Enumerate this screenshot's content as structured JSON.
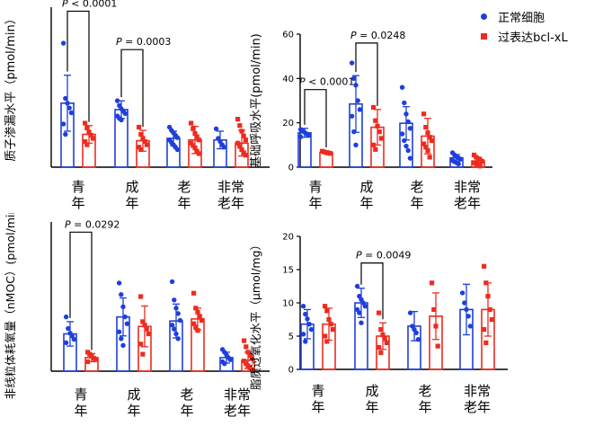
{
  "colors": {
    "blue": "#1f3fdc",
    "red": "#ee2b1f",
    "axis": "#000000"
  },
  "legend": [
    {
      "label": "正常细胞",
      "color": "#1f3fdc",
      "marker": "circle"
    },
    {
      "label": "过表达bcl-xL",
      "color": "#ee2b1f",
      "marker": "square"
    }
  ],
  "chart_data": [
    {
      "id": "proton-leak",
      "type": "bar",
      "ylabel": "质子渗漏水平（pmol/min）",
      "ylim": [
        0,
        20
      ],
      "yticks": [],
      "categories": [
        [
          "青",
          "年"
        ],
        [
          "成",
          "年"
        ],
        [
          "老",
          "年"
        ],
        [
          "非常",
          "老年"
        ]
      ],
      "series": [
        {
          "name": "正常细胞",
          "values": [
            8.0,
            7.2,
            3.6,
            3.4
          ],
          "err": [
            3.5,
            1.1,
            0.9,
            1.1
          ],
          "points": [
            [
              15.5,
              8.6,
              8.0,
              7.4,
              6.8,
              5.4,
              4.1
            ],
            [
              8.3,
              7.7,
              7.3,
              7.0,
              6.7,
              6.4,
              6.1,
              5.9
            ],
            [
              5.0,
              4.6,
              4.3,
              4.0,
              3.7,
              3.4,
              3.1,
              2.8,
              2.5,
              2.2
            ],
            [
              4.8,
              3.6,
              3.2,
              2.8,
              2.5
            ]
          ]
        },
        {
          "name": "过表达bcl-xL",
          "values": [
            4.1,
            3.3,
            3.4,
            3.0
          ],
          "err": [
            1.1,
            1.3,
            1.7,
            1.6
          ],
          "points": [
            [
              5.5,
              4.9,
              4.4,
              4.0,
              3.6,
              3.2,
              2.8
            ],
            [
              5.0,
              4.1,
              3.6,
              3.2,
              2.8,
              2.5,
              2.2
            ],
            [
              5.5,
              4.8,
              4.2,
              3.8,
              3.4,
              3.0,
              2.7,
              2.4,
              2.0,
              1.7
            ],
            [
              6.0,
              5.2,
              4.5,
              3.9,
              3.4,
              3.0,
              2.6,
              2.2,
              1.8,
              1.5
            ]
          ]
        }
      ],
      "annotations": [
        {
          "text": "P < 0.0001",
          "pair": [
            0,
            0
          ],
          "ybar": 19.5
        },
        {
          "text": "P = 0.0003",
          "pair": [
            1,
            1
          ],
          "ybar": 14.7
        }
      ]
    },
    {
      "id": "basal-respiration",
      "type": "bar",
      "ylabel": "基础呼吸水平(pmol/min)",
      "ylim": [
        0,
        60
      ],
      "yticks": [
        "0",
        "20",
        "40",
        "60"
      ],
      "categories": [
        [
          "青",
          "年"
        ],
        [
          "成",
          "年"
        ],
        [
          "老",
          "年"
        ],
        [
          "非常",
          "老年"
        ]
      ],
      "series": [
        {
          "name": "正常细胞",
          "values": [
            15.5,
            28.5,
            19.8,
            4.2
          ],
          "err": [
            2.0,
            12.8,
            7.5,
            1.5
          ],
          "points": [
            [
              17.0,
              16.3,
              15.7,
              15.0,
              14.3,
              13.7
            ],
            [
              47.0,
              40.0,
              37.0,
              30.0,
              26.0,
              23.0,
              16.0,
              10.0
            ],
            [
              36.0,
              29.0,
              24.0,
              20.5,
              17.5,
              15.0,
              12.0,
              9.5,
              7.5,
              4.0
            ],
            [
              6.5,
              5.5,
              4.8,
              4.2,
              3.6,
              3.0,
              2.5,
              2.0,
              1.5
            ]
          ]
        },
        {
          "name": "过表达bcl-xL",
          "values": [
            6.7,
            18.0,
            14.0,
            2.8
          ],
          "err": [
            0.6,
            8.0,
            8.0,
            1.6
          ],
          "points": [
            [
              7.2,
              6.9,
              6.6,
              6.4,
              6.2
            ],
            [
              27.0,
              21.0,
              18.5,
              16.0,
              13.0,
              10.0,
              8.0
            ],
            [
              24.0,
              18.0,
              15.5,
              13.5,
              12.0,
              10.5,
              9.0,
              7.5,
              4.5
            ],
            [
              5.5,
              4.5,
              3.8,
              3.2,
              2.6,
              2.0,
              1.5,
              1.0,
              0.5
            ]
          ]
        }
      ],
      "annotations": [
        {
          "text": "P < 0.0001",
          "pair": [
            0,
            0
          ],
          "ybar": 35.0
        },
        {
          "text": "P = 0.0248",
          "pair": [
            1,
            1
          ],
          "ybar": 56.0
        }
      ]
    },
    {
      "id": "non-mito-oxygen",
      "type": "bar",
      "ylabel": "非线粒体耗氧量（nMOC）(pmol/min)",
      "ylim": [
        0,
        22
      ],
      "yticks": [],
      "categories": [
        [
          "青",
          "年"
        ],
        [
          "成",
          "年"
        ],
        [
          "老",
          "年"
        ],
        [
          "非常",
          "老年"
        ]
      ],
      "series": [
        {
          "name": "正常细胞",
          "values": [
            5.5,
            8.0,
            7.4,
            2.0
          ],
          "err": [
            1.8,
            2.8,
            2.5,
            0.8
          ],
          "points": [
            [
              8.0,
              6.3,
              5.6,
              5.2,
              4.7,
              4.2
            ],
            [
              13.0,
              11.3,
              9.5,
              8.0,
              7.0,
              5.8,
              4.8,
              3.8
            ],
            [
              13.2,
              10.5,
              9.3,
              8.5,
              7.5,
              6.8,
              6.2,
              5.5,
              4.8
            ],
            [
              3.2,
              2.8,
              2.4,
              2.0,
              1.7,
              1.4,
              1.1
            ]
          ]
        },
        {
          "name": "过表达bcl-xL",
          "values": [
            2.0,
            6.6,
            7.7,
            1.6
          ],
          "err": [
            0.6,
            3.0,
            1.6,
            1.2
          ],
          "points": [
            [
              2.8,
              2.5,
              2.2,
              1.9,
              1.7,
              1.4
            ],
            [
              11.0,
              7.3,
              6.8,
              6.2,
              5.5,
              4.0,
              2.5
            ],
            [
              11.5,
              9.3,
              8.7,
              8.1,
              7.5,
              7.0,
              6.5,
              6.0
            ],
            [
              4.5,
              3.6,
              2.8,
              2.3,
              1.9,
              1.5,
              1.1,
              0.8,
              0.5,
              0.2
            ]
          ]
        }
      ],
      "annotations": [
        {
          "text": "P = 0.0292",
          "pair": [
            0,
            0
          ],
          "ybar": 20.5
        }
      ]
    },
    {
      "id": "lipid-peroxidation",
      "type": "bar",
      "ylabel": "脂质过氧化水平（µmol/mg）",
      "ylim": [
        0,
        20
      ],
      "yticks": [
        "0",
        "5",
        "10",
        "15",
        "20"
      ],
      "categories": [
        [
          "青",
          "年"
        ],
        [
          "成",
          "年"
        ],
        [
          "老",
          "年"
        ],
        [
          "非常",
          "老年"
        ]
      ],
      "series": [
        {
          "name": "正常细胞",
          "values": [
            6.8,
            10.0,
            6.5,
            9.0
          ],
          "err": [
            2.2,
            2.2,
            2.2,
            3.8
          ],
          "points": [
            [
              9.5,
              8.3,
              7.6,
              6.8,
              6.0,
              5.3,
              4.2
            ],
            [
              12.5,
              11.0,
              10.5,
              10.0,
              9.5,
              9.0,
              8.5,
              7.0
            ],
            [
              8.5,
              6.5,
              6.0,
              5.5,
              4.5
            ],
            [
              11.5,
              10.0,
              9.0,
              8.0,
              6.5
            ]
          ]
        },
        {
          "name": "过表达bcl-xL",
          "values": [
            6.8,
            5.0,
            8.0,
            9.0
          ],
          "err": [
            2.4,
            2.0,
            3.5,
            4.0
          ],
          "points": [
            [
              9.5,
              8.8,
              7.5,
              6.8,
              6.0,
              5.0,
              4.2
            ],
            [
              8.5,
              6.0,
              5.2,
              4.6,
              4.0,
              3.3,
              2.5
            ],
            [
              13.0,
              9.0,
              6.5,
              3.5
            ],
            [
              15.5,
              13.0,
              11.0,
              9.0,
              7.5,
              6.0,
              4.0
            ]
          ]
        }
      ],
      "annotations": [
        {
          "text": "P = 0.0049",
          "pair": [
            1,
            1
          ],
          "ybar": 16.0
        }
      ]
    }
  ]
}
